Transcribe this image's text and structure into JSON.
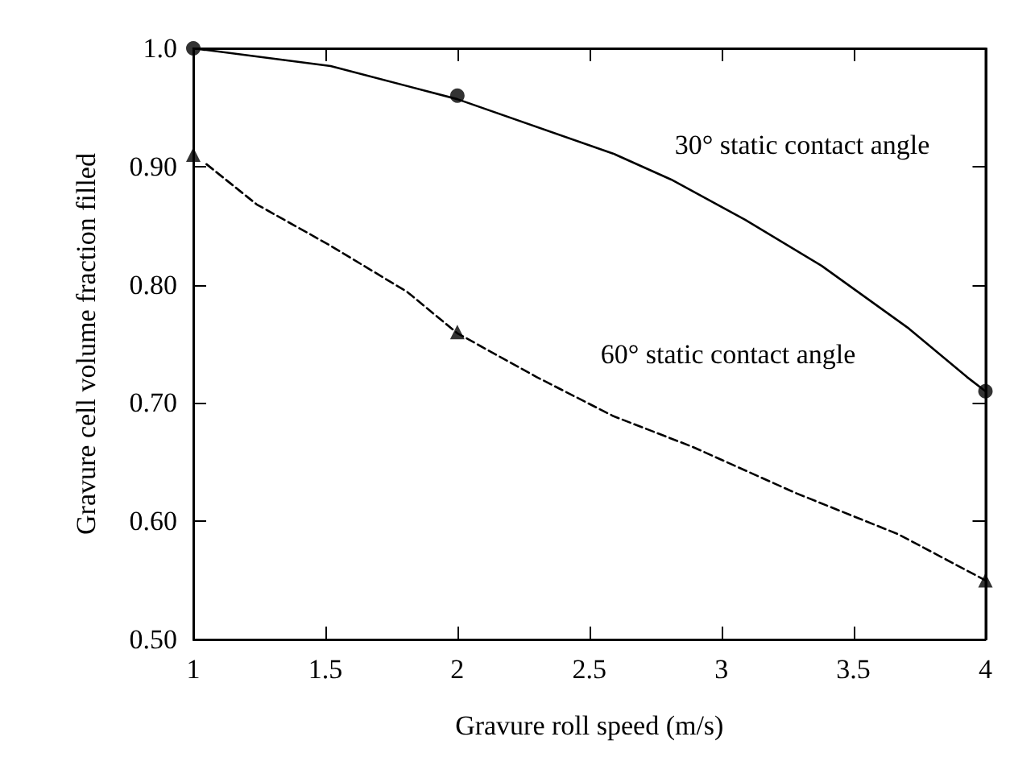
{
  "chart_data": {
    "type": "scatter",
    "xlabel": "Gravure roll speed (m/s)",
    "ylabel": "Gravure cell volume fraction filled",
    "xlim": [
      1,
      4
    ],
    "xticks": [
      1,
      1.5,
      2,
      2.5,
      3,
      3.5,
      4
    ],
    "ylim": [
      0.5,
      1
    ],
    "yticks": [
      {
        "value": 0.5,
        "label": "0.50"
      },
      {
        "value": 0.6,
        "label": "0.60"
      },
      {
        "value": 0.7,
        "label": "0.70"
      },
      {
        "value": 0.8,
        "label": "0.80"
      },
      {
        "value": 0.9,
        "label": "0.90"
      },
      {
        "value": 1,
        "label": "1.0"
      }
    ],
    "series": [
      {
        "marker": "circle",
        "color": "#000000",
        "x": [
          1,
          2,
          4
        ],
        "values": [
          1.0,
          0.96,
          0.71
        ]
      },
      {
        "marker": "triangle",
        "color": "#000000",
        "x": [
          1,
          2,
          4
        ],
        "values": [
          0.91,
          0.76,
          0.55
        ]
      },
      {
        "type": "line",
        "line_style": "solid",
        "color": "#000000",
        "x": [
          1,
          1.52,
          2,
          2.59,
          2.81,
          3.09,
          3.38,
          3.71,
          3.93,
          4
        ],
        "values": [
          1.0,
          0.985,
          0.957,
          0.911,
          0.889,
          0.855,
          0.816,
          0.763,
          0.722,
          0.71
        ]
      },
      {
        "type": "line",
        "line_style": "dashed",
        "color": "#000000",
        "x": [
          1.05,
          1.24,
          1.52,
          1.81,
          2,
          2.3,
          2.59,
          2.89,
          3.28,
          3.67,
          4
        ],
        "values": [
          0.902,
          0.868,
          0.833,
          0.794,
          0.759,
          0.722,
          0.689,
          0.663,
          0.624,
          0.589,
          0.55
        ]
      }
    ],
    "annotations": [
      "30° static contact angle",
      "60° static contact angle"
    ]
  }
}
